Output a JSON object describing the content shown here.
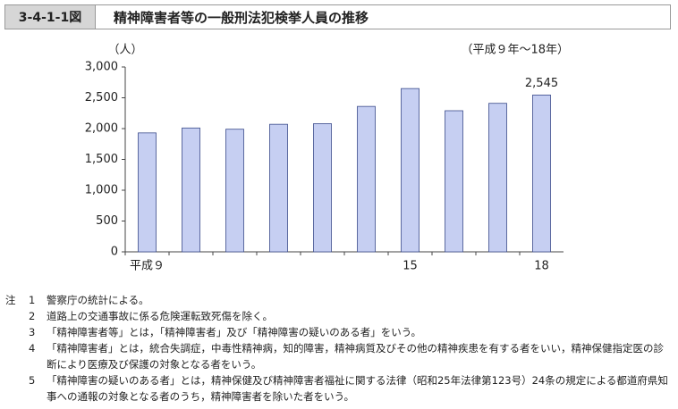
{
  "header": {
    "figure": "3-4-1-1図",
    "title": "精神障害者等の一般刑法犯検挙人員の推移"
  },
  "chart_data": {
    "type": "bar",
    "y_label": "（人）",
    "subtitle": "（平成９年～18年）",
    "categories": [
      "平成９",
      null,
      null,
      null,
      null,
      null,
      "15",
      null,
      null,
      "18"
    ],
    "values": [
      1930,
      2010,
      1990,
      2070,
      2080,
      2360,
      2650,
      2290,
      2410,
      2545
    ],
    "value_labels": [
      null,
      null,
      null,
      null,
      null,
      null,
      null,
      null,
      null,
      "2,545"
    ],
    "color": "#c6cff2",
    "edge_color": "#3a4a8a",
    "ylim": [
      0,
      3000
    ],
    "yticks": [
      0,
      {
        "value": 500,
        "label": "500"
      },
      {
        "value": 1000,
        "label": "1,000"
      },
      {
        "value": 1500,
        "label": "1,500"
      },
      {
        "value": 2000,
        "label": "2,000"
      },
      {
        "value": 2500,
        "label": "2,500"
      },
      {
        "value": 3000,
        "label": "3,000"
      }
    ],
    "grid": false
  },
  "notes": {
    "label": "注",
    "items": [
      {
        "number": "1",
        "text": "警察庁の統計による。"
      },
      {
        "number": "2",
        "text": "道路上の交通事故に係る危険運転致死傷を除く。"
      },
      {
        "number": "3",
        "text": "「精神障害者等」とは，「精神障害者」及び「精神障害の疑いのある者」をいう。"
      },
      {
        "number": "4",
        "text": "「精神障害者」とは，統合失調症，中毒性精神病，知的障害，精神病質及びその他の精神疾患を有する者をいい，精神保健指定医の診断により医療及び保護の対象となる者をいう。"
      },
      {
        "number": "5",
        "text": "「精神障害の疑いのある者」とは，精神保健及び精神障害者福祉に関する法律（昭和25年法律第123号）24条の規定による都道府県知事への通報の対象となる者のうち，精神障害者を除いた者をいう。"
      }
    ]
  }
}
